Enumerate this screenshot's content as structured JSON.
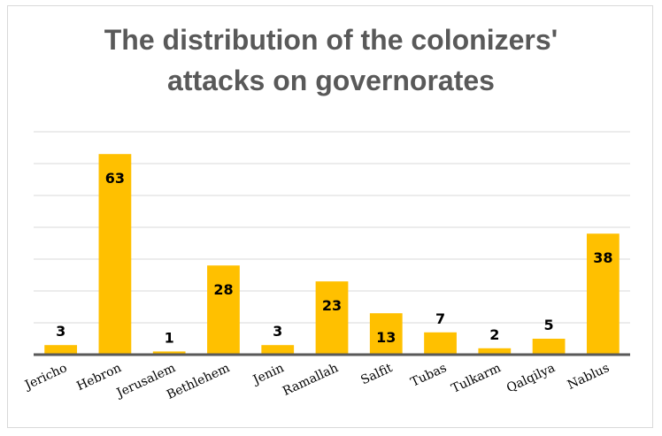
{
  "chart_data": {
    "type": "bar",
    "title_lines": [
      "The distribution of the colonizers'",
      "attacks on governorates"
    ],
    "categories": [
      "Jericho",
      "Hebron",
      "Jerusalem",
      "Bethlehem",
      "Jenin",
      "Ramallah",
      "Salfit",
      "Tubas",
      "Tulkarm",
      "Qalqilya",
      "Nablus"
    ],
    "values": [
      3,
      63,
      1,
      28,
      3,
      23,
      13,
      7,
      2,
      5,
      38
    ],
    "ylim": [
      0,
      70
    ],
    "grid": true,
    "bar_color": "#FFC000",
    "gridline_color": "#d9d9d9",
    "axis_color": "#595959",
    "xlabel": "",
    "ylabel": ""
  }
}
